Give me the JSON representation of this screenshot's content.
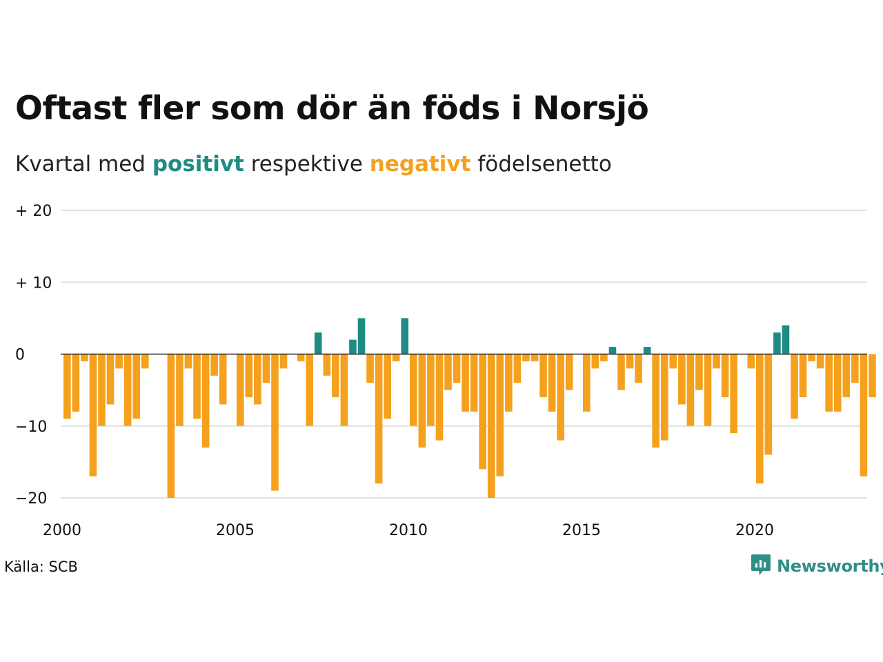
{
  "title": "Oftast fler som dör än föds i Norsjö",
  "subtitle": {
    "prefix": "Kvartal med ",
    "positive_word": "positivt",
    "middle": " respektive ",
    "negative_word": "negativt",
    "suffix": " födelsenetto"
  },
  "colors": {
    "positive": "#1e8c83",
    "negative": "#f5a11d",
    "grid": "#e0e0e0",
    "zero_line": "#222222",
    "brand": "#2f8f86"
  },
  "source": "Källa: SCB",
  "brand": {
    "name": "Newsworthy",
    "icon": "newsworthy-logo-icon"
  },
  "chart_data": {
    "type": "bar",
    "start_year": 2000,
    "quarters_per_year": 4,
    "ylim": [
      -20,
      20
    ],
    "y_ticks": [
      {
        "value": 20,
        "label": "+ 20"
      },
      {
        "value": 10,
        "label": "+ 10"
      },
      {
        "value": 0,
        "label": "0"
      },
      {
        "value": -10,
        "label": "−10"
      },
      {
        "value": -20,
        "label": "−20"
      }
    ],
    "x_ticks": [
      {
        "year": 2000,
        "label": "2000"
      },
      {
        "year": 2005,
        "label": "2005"
      },
      {
        "year": 2010,
        "label": "2010"
      },
      {
        "year": 2015,
        "label": "2015"
      },
      {
        "year": 2020,
        "label": "2020"
      }
    ],
    "categories": [
      "2000K1",
      "2000K2",
      "2000K3",
      "2000K4",
      "2001K1",
      "2001K2",
      "2001K3",
      "2001K4",
      "2002K1",
      "2002K2",
      "2002K3",
      "2002K4",
      "2003K1",
      "2003K2",
      "2003K3",
      "2003K4",
      "2004K1",
      "2004K2",
      "2004K3",
      "2004K4",
      "2005K1",
      "2005K2",
      "2005K3",
      "2005K4",
      "2006K1",
      "2006K2",
      "2006K3",
      "2006K4",
      "2007K1",
      "2007K2",
      "2007K3",
      "2007K4",
      "2008K1",
      "2008K2",
      "2008K3",
      "2008K4",
      "2009K1",
      "2009K2",
      "2009K3",
      "2009K4",
      "2010K1",
      "2010K2",
      "2010K3",
      "2010K4",
      "2011K1",
      "2011K2",
      "2011K3",
      "2011K4",
      "2012K1",
      "2012K2",
      "2012K3",
      "2012K4",
      "2013K1",
      "2013K2",
      "2013K3",
      "2013K4",
      "2014K1",
      "2014K2",
      "2014K3",
      "2014K4",
      "2015K1",
      "2015K2",
      "2015K3",
      "2015K4",
      "2016K1",
      "2016K2",
      "2016K3",
      "2016K4",
      "2017K1",
      "2017K2",
      "2017K3",
      "2017K4",
      "2018K1",
      "2018K2",
      "2018K3",
      "2018K4",
      "2019K1",
      "2019K2",
      "2019K3",
      "2019K4",
      "2020K1",
      "2020K2",
      "2020K3",
      "2020K4",
      "2021K1",
      "2021K2",
      "2021K3",
      "2021K4",
      "2022K1",
      "2022K2",
      "2022K3",
      "2022K4",
      "2023K1",
      "2023K2"
    ],
    "values": [
      -9,
      -8,
      -1,
      -17,
      -10,
      -7,
      -2,
      -10,
      -9,
      -2,
      0,
      0,
      -20,
      -10,
      -2,
      -9,
      -13,
      -3,
      -7,
      0,
      -10,
      -6,
      -7,
      -4,
      -19,
      -2,
      0,
      -1,
      -10,
      3,
      -3,
      -6,
      -10,
      2,
      5,
      -4,
      -18,
      -9,
      -1,
      5,
      -10,
      -13,
      -10,
      -12,
      -5,
      -4,
      -8,
      -8,
      -16,
      -20,
      -17,
      -8,
      -4,
      -1,
      -1,
      -6,
      -8,
      -12,
      -5,
      0,
      -8,
      -2,
      -1,
      1,
      -5,
      -2,
      -4,
      1,
      -13,
      -12,
      -2,
      -7,
      -10,
      -5,
      -10,
      -2,
      -6,
      -11,
      0,
      -2,
      -18,
      -14,
      3,
      4,
      -9,
      -6,
      -1,
      -2,
      -8,
      -8,
      -6,
      -4,
      -17,
      -6
    ]
  }
}
